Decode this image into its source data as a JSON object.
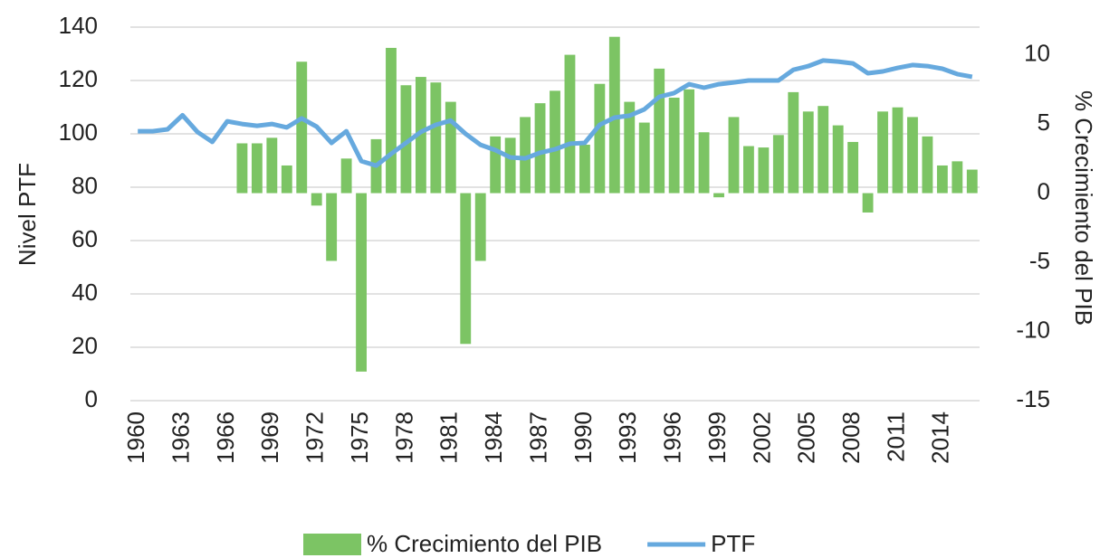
{
  "chart_data": {
    "type": "bar",
    "categories": [
      "1960",
      null,
      null,
      "1963",
      null,
      null,
      "1966",
      null,
      null,
      "1969",
      null,
      null,
      "1972",
      null,
      null,
      "1975",
      null,
      null,
      "1978",
      null,
      null,
      "1981",
      null,
      null,
      "1984",
      null,
      null,
      "1987",
      null,
      null,
      "1990",
      null,
      null,
      "1993",
      null,
      null,
      "1996",
      null,
      null,
      "1999",
      null,
      null,
      "2002",
      null,
      null,
      "2005",
      null,
      null,
      "2008",
      null,
      null,
      "2011",
      null,
      null,
      "2014",
      null,
      null
    ],
    "y_label": "Nivel PTF",
    "y2_label": "% Crecimiento del PIB",
    "ylim": [
      0,
      140
    ],
    "yticks": [
      0,
      20,
      40,
      60,
      80,
      100,
      120,
      140
    ],
    "y2lim": [
      -15,
      12
    ],
    "y2ticks": [
      -15,
      -10,
      -5,
      0,
      5,
      10
    ],
    "grid": true,
    "legend": "bottom",
    "series": [
      {
        "name": "% Crecimiento del PIB",
        "type": "bar",
        "axis": "y2",
        "color": "#7cc464",
        "values": [
          null,
          null,
          null,
          null,
          null,
          null,
          null,
          3.6,
          3.6,
          4.0,
          2.0,
          9.5,
          -0.9,
          -4.9,
          2.5,
          -12.9,
          3.9,
          10.5,
          7.8,
          8.4,
          8.0,
          6.6,
          -10.9,
          -4.9,
          4.1,
          4.0,
          5.5,
          6.5,
          7.4,
          10.0,
          3.5,
          7.9,
          11.3,
          6.6,
          5.1,
          9.0,
          6.9,
          7.5,
          4.4,
          -0.3,
          5.5,
          3.4,
          3.3,
          4.2,
          7.3,
          5.9,
          6.3,
          4.9,
          3.7,
          -1.4,
          5.9,
          6.2,
          5.5,
          4.1,
          2.0,
          2.3,
          1.7
        ]
      },
      {
        "name": "PTF",
        "type": "line",
        "axis": "y",
        "color": "#66a9de",
        "values": [
          101,
          101,
          101.7,
          107,
          100.7,
          97,
          104.7,
          103.7,
          103,
          103.7,
          102.4,
          105.8,
          102.7,
          96.6,
          101,
          89.8,
          88.1,
          92.5,
          96.6,
          100.7,
          103.4,
          105,
          100,
          95.9,
          93.9,
          91.2,
          90.8,
          92.9,
          94.2,
          96.3,
          96.6,
          103.4,
          106.1,
          106.8,
          109.2,
          113.9,
          115.3,
          118.6,
          117.3,
          118.6,
          119.3,
          120,
          120,
          120,
          124,
          125.4,
          127.5,
          127.1,
          126.4,
          122.7,
          123.4,
          124.7,
          125.8,
          125.4,
          124.4,
          122.4,
          121.4
        ]
      }
    ]
  }
}
